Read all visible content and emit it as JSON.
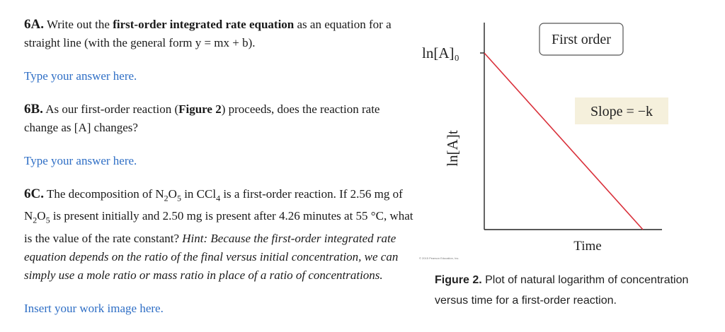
{
  "q6a": {
    "label": "6A.",
    "text_before": "Write out the",
    "bold": "first-order integrated rate equation",
    "text_after": "as an equation for a straight line (with the general form y = mx + b).",
    "answer_placeholder": "Type your answer here."
  },
  "q6b": {
    "label": "6B.",
    "text_before": "As our first-order reaction (",
    "bold": "Figure 2",
    "text_after": ") proceeds, does the reaction rate change as [A] changes?",
    "answer_placeholder": "Type your answer here."
  },
  "q6c": {
    "label": "6C.",
    "text_1": "The decomposition of N",
    "sub_1": "2",
    "text_2": "O",
    "sub_2": "5",
    "text_3": " in CCl",
    "sub_3": "4",
    "text_4": " is a first-order reaction. If 2.56 mg of N",
    "sub_4": "2",
    "text_5": "O",
    "sub_5": "5",
    "text_6": " is present initially and 2.50 mg is present after 4.26 minutes at 55 °C, what is the value of the rate constant?",
    "hint": "Hint: Because the first-order integrated rate equation depends on the ratio of the final versus initial concentration, we can simply use a mole ratio or mass ratio in place of a ratio of concentrations.",
    "answer_placeholder": "Insert your work image here."
  },
  "figure": {
    "label_box": "First order",
    "slope_label": "Slope = −k",
    "y_intercept_label": "ln[A]₀",
    "ylabel": "ln[A]t",
    "xlabel": "Time",
    "credit": "© 2015 Pearson Education, Inc.",
    "caption_bold": "Figure 2.",
    "caption_text": " Plot of natural logarithm of concentration versus time for a first-order reaction."
  },
  "colors": {
    "line": "#d9303a",
    "slope_box": "#f5f0dc",
    "answer_link": "#2e6ec5"
  },
  "chart_data": {
    "type": "line",
    "series": [
      {
        "x": [
          "0",
          "end"
        ],
        "y": [
          "ln[A]0",
          "low"
        ]
      }
    ],
    "xlabel": "Time",
    "ylabel": "ln[A]t",
    "grid": false
  }
}
